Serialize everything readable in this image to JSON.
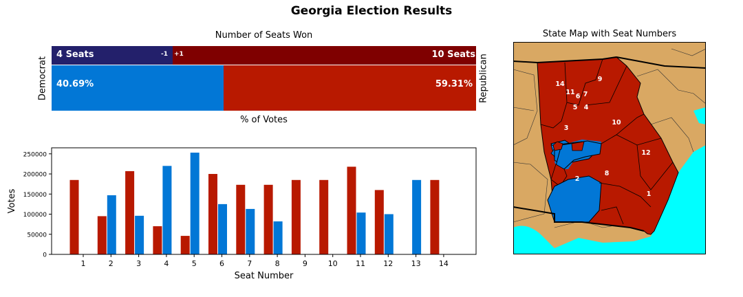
{
  "title": "Georgia Election Results",
  "seats_panel": {
    "title": "Number of Seats Won",
    "left_axis_label": "Democrat",
    "right_axis_label": "Republican",
    "bottom_axis_label": "% of Votes",
    "dem_seats_label": "4 Seats",
    "rep_seats_label": "10 Seats",
    "dem_change_label": "-1",
    "rep_change_label": "+1",
    "dem_vote_label": "40.69%",
    "rep_vote_label": "59.31%"
  },
  "map_panel": {
    "title": "State Map with Seat Numbers",
    "district_labels": [
      "1",
      "2",
      "3",
      "4",
      "5",
      "6",
      "7",
      "8",
      "9",
      "10",
      "11",
      "12",
      "14"
    ]
  },
  "colors": {
    "dem_seat": "#23206b",
    "rep_seat": "#7f0000",
    "dem": "#0277d6",
    "rep": "#b81900",
    "land": "#d9a863",
    "water": "#00ffff"
  },
  "chart_data": [
    {
      "type": "bar",
      "title": "Number of Seats Won",
      "xlabel": "% of Votes",
      "series": [
        {
          "name": "Democrat",
          "seats": 4,
          "seat_change": -1,
          "vote_pct": 40.69
        },
        {
          "name": "Republican",
          "seats": 10,
          "seat_change": 1,
          "vote_pct": 59.31
        }
      ]
    },
    {
      "type": "bar",
      "xlabel": "Seat Number",
      "ylabel": "Votes",
      "categories": [
        "1",
        "2",
        "3",
        "4",
        "5",
        "6",
        "7",
        "8",
        "9",
        "10",
        "11",
        "12",
        "13",
        "14"
      ],
      "ylim": [
        0,
        265000
      ],
      "yticks": [
        0,
        50000,
        100000,
        150000,
        200000,
        250000
      ],
      "series": [
        {
          "name": "Republican",
          "values": [
            185000,
            95000,
            207000,
            70000,
            46000,
            200000,
            173000,
            173000,
            185000,
            185000,
            218000,
            160000,
            0,
            185000
          ]
        },
        {
          "name": "Democrat",
          "values": [
            0,
            147000,
            96000,
            220000,
            253000,
            125000,
            113000,
            82000,
            0,
            0,
            104000,
            100000,
            185000,
            0
          ]
        }
      ]
    }
  ]
}
